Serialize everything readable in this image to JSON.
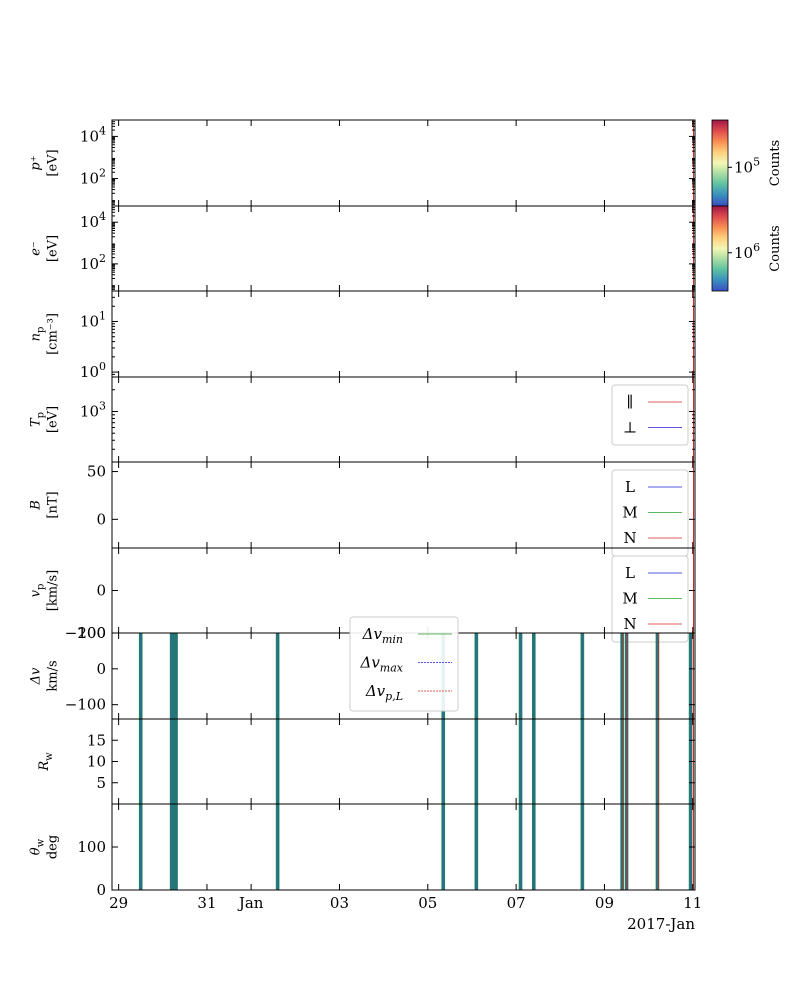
{
  "chart_data": {
    "type": "line",
    "title": "",
    "x_axis": {
      "ticks": [
        {
          "day": -3,
          "label": "29"
        },
        {
          "day": -1,
          "label": "31"
        },
        {
          "day": 0,
          "label": "Jan"
        },
        {
          "day": 2,
          "label": "03"
        },
        {
          "day": 4,
          "label": "05"
        },
        {
          "day": 6,
          "label": "07"
        },
        {
          "day": 8,
          "label": "09"
        },
        {
          "day": 10,
          "label": "11"
        }
      ],
      "xlim": [
        -3.15,
        10.05
      ],
      "offset_label": "2017-Jan"
    },
    "panels": [
      {
        "id": "p-spec",
        "ylabel": [
          "p⁺",
          "[eV]"
        ],
        "scale": "log",
        "ylim": [
          5,
          60000
        ],
        "ticks": [
          {
            "v": 100,
            "base": "10",
            "exp": "2"
          },
          {
            "v": 10000,
            "base": "10",
            "exp": "4"
          }
        ],
        "colorbar": {
          "label": "Counts",
          "tick": {
            "base": "10",
            "exp": "5"
          },
          "tick_pos": 0.55
        }
      },
      {
        "id": "e-spec",
        "ylabel": [
          "e⁻",
          "[eV]"
        ],
        "scale": "log",
        "ylim": [
          5,
          60000
        ],
        "ticks": [
          {
            "v": 100,
            "base": "10",
            "exp": "2"
          },
          {
            "v": 10000,
            "base": "10",
            "exp": "4"
          }
        ],
        "colorbar": {
          "label": "Counts",
          "tick": {
            "base": "10",
            "exp": "6"
          },
          "tick_pos": 0.55
        }
      },
      {
        "id": "np",
        "ylabel": [
          "n",
          "p",
          "[cm⁻³]"
        ],
        "scale": "log",
        "ylim": [
          0.8,
          40
        ],
        "ticks": [
          {
            "v": 1,
            "base": "10",
            "exp": "0"
          },
          {
            "v": 10,
            "base": "10",
            "exp": "1"
          }
        ]
      },
      {
        "id": "tp",
        "ylabel": [
          "T",
          "p",
          "[eV]"
        ],
        "scale": "log",
        "ylim": [
          200,
          3000
        ],
        "ticks": [
          {
            "v": 1000,
            "base": "10",
            "exp": "3"
          }
        ],
        "legend": [
          {
            "label": "∥",
            "color": "#d62728"
          },
          {
            "label": "⊥",
            "color": "#1f1fd6"
          }
        ]
      },
      {
        "id": "b",
        "ylabel": [
          "B",
          "[nT]"
        ],
        "scale": "linear",
        "ylim": [
          -30,
          60
        ],
        "ticks": [
          {
            "v": 0,
            "label": "0"
          },
          {
            "v": 50,
            "label": "50"
          }
        ],
        "legend": [
          {
            "label": "L",
            "color": "#1f1fd6"
          },
          {
            "label": "M",
            "color": "#2ca02c"
          },
          {
            "label": "N",
            "color": "#d62728"
          }
        ]
      },
      {
        "id": "vp",
        "ylabel": [
          "v",
          "p",
          "[km/s]"
        ],
        "scale": "linear",
        "ylim": [
          -200,
          200
        ],
        "ticks": [
          {
            "v": -200,
            "label": "−200"
          },
          {
            "v": 0,
            "label": "0"
          }
        ],
        "legend": [
          {
            "label": "L",
            "color": "#1f1fd6"
          },
          {
            "label": "M",
            "color": "#2ca02c"
          },
          {
            "label": "N",
            "color": "#d62728"
          }
        ]
      },
      {
        "id": "dv",
        "ylabel": [
          "Δv",
          "km/s"
        ],
        "scale": "linear",
        "ylim": [
          -140,
          100
        ],
        "ticks": [
          {
            "v": -100,
            "label": "−100"
          },
          {
            "v": 0,
            "label": "0"
          },
          {
            "v": 100,
            "label": "100"
          }
        ],
        "legend": [
          {
            "label": "Δv",
            "sub": "min",
            "color": "#2ca02c",
            "dash": "none"
          },
          {
            "label": "Δv",
            "sub": "max",
            "color": "#1f1fd6",
            "dash": "2,1"
          },
          {
            "label": "Δv",
            "sub": "p,L",
            "color": "#d62728",
            "dash": "2,1"
          }
        ]
      },
      {
        "id": "rw",
        "ylabel": [
          "R",
          "w"
        ],
        "scale": "linear",
        "ylim": [
          0,
          20
        ],
        "ticks": [
          {
            "v": 5,
            "label": "5"
          },
          {
            "v": 10,
            "label": "10"
          },
          {
            "v": 15,
            "label": "15"
          }
        ]
      },
      {
        "id": "tw",
        "ylabel": [
          "θ",
          "w",
          "deg"
        ],
        "scale": "linear",
        "ylim": [
          0,
          200
        ],
        "ticks": [
          {
            "v": 0,
            "label": "0"
          },
          {
            "v": 100,
            "label": "100"
          }
        ]
      }
    ],
    "event_days": [
      -2.5,
      -1.8,
      -1.75,
      -1.7,
      0.6,
      4.35,
      5.1,
      6.1,
      6.4,
      7.5,
      8.4,
      8.5,
      9.2,
      9.95
    ],
    "colors": {
      "event_fill": "#2a6e8c",
      "event_edge": "#1a8a4a",
      "event_red": "#d62728"
    },
    "colormap": [
      "#3b4cc0",
      "#3a8ec0",
      "#5dc0a4",
      "#a9dda2",
      "#f3f7b4",
      "#fdd07e",
      "#f98e52",
      "#de4a4e",
      "#9e1746"
    ]
  }
}
